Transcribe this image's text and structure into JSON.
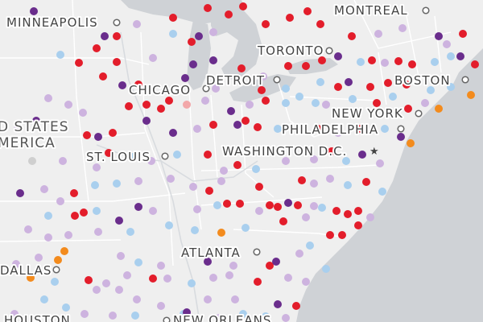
{
  "map": {
    "colors": {
      "land": "#efefef",
      "water": "#cfd2d6",
      "borders": "#ffffff",
      "red": "#e31d2b",
      "purple": "#6a2d8c",
      "lavender": "#cdb3df",
      "lightblue": "#a9cfee",
      "orange": "#f38b1d",
      "pink": "#f2a7a9",
      "gray": "#cfcfcf"
    },
    "labels": {
      "minneapolis": "MINNEAPOLIS",
      "montreal": "MONTREAL",
      "toronto": "TORONTO",
      "detroit": "DETROIT",
      "chicago": "CHICAGO",
      "boston": "BOSTON",
      "new_york": "NEW YORK",
      "philadelphia": "PHILADELPHIA",
      "washington": "WASHINGTON D.C.",
      "st_louis": "ST. LOUIS",
      "atlanta": "ATLANTA",
      "dallas": "DALLAS",
      "houston": "HOUSTON",
      "new_orleans": "NEW ORLEANS",
      "country_line1": "D STATES",
      "country_line2": "MERICA"
    }
  }
}
